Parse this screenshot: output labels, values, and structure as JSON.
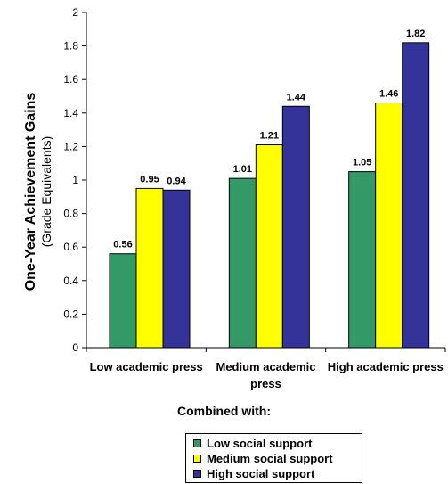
{
  "chart_data": {
    "type": "bar",
    "categories": [
      "Low academic press",
      "Medium academic press",
      "High academic press"
    ],
    "series": [
      {
        "name": "Low social support",
        "color": "#339966",
        "values": [
          0.56,
          1.01,
          1.05
        ]
      },
      {
        "name": "Medium social support",
        "color": "#ffff00",
        "values": [
          0.95,
          1.21,
          1.46
        ]
      },
      {
        "name": "High social support",
        "color": "#333399",
        "values": [
          0.94,
          1.44,
          1.82
        ]
      }
    ],
    "data_labels": [
      [
        "0.56",
        "1.01",
        "1.05"
      ],
      [
        "0.95",
        "1.21",
        "1.46"
      ],
      [
        "0.94",
        "1.44",
        "1.82"
      ]
    ],
    "ylabel": "One-Year Achievement Gains",
    "ylabel_sub": "(Grade Equivalents)",
    "xlabel": "Combined with:",
    "ylim": [
      0,
      2
    ],
    "yticks": [
      0,
      0.2,
      0.4,
      0.6,
      0.8,
      1,
      1.2,
      1.4,
      1.6,
      1.8,
      2
    ],
    "ytick_labels": [
      "0",
      "0.2",
      "0.4",
      "0.6",
      "0.8",
      "1",
      "1.2",
      "1.4",
      "1.6",
      "1.8",
      "2"
    ],
    "grid": false,
    "legend_position": "bottom"
  }
}
